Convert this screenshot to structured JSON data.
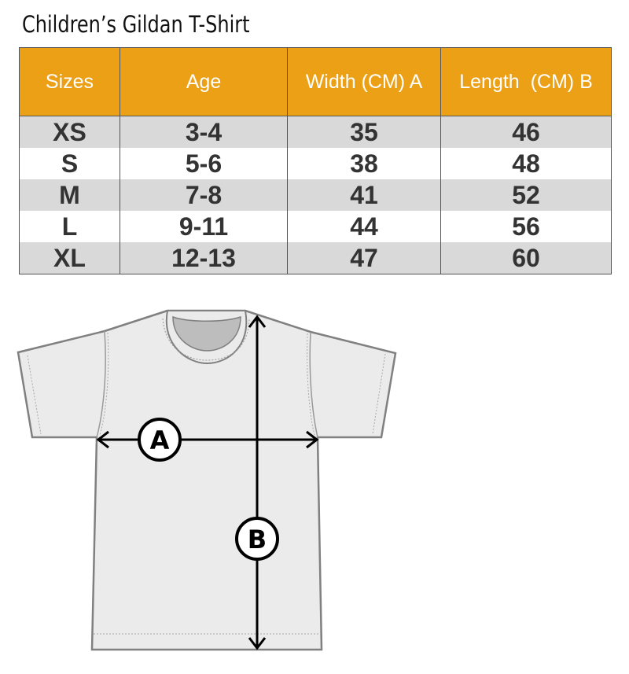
{
  "title": "Children’s Gildan T-Shirt",
  "table": {
    "headers": [
      "Sizes",
      "Age",
      "Width (CM) A",
      "Length  (CM) B"
    ],
    "rows": [
      [
        "XS",
        "3-4",
        "35",
        "46"
      ],
      [
        "S",
        "5-6",
        "38",
        "48"
      ],
      [
        "M",
        "7-8",
        "41",
        "52"
      ],
      [
        "L",
        "9-11",
        "44",
        "56"
      ],
      [
        "XL",
        "12-13",
        "47",
        "60"
      ]
    ]
  },
  "diagram": {
    "label_a": "A",
    "label_b": "B"
  },
  "colors": {
    "header": "#eba016",
    "stripe": "#d9d9d9",
    "shirt": "#ebebeb",
    "outline": "#808080"
  }
}
